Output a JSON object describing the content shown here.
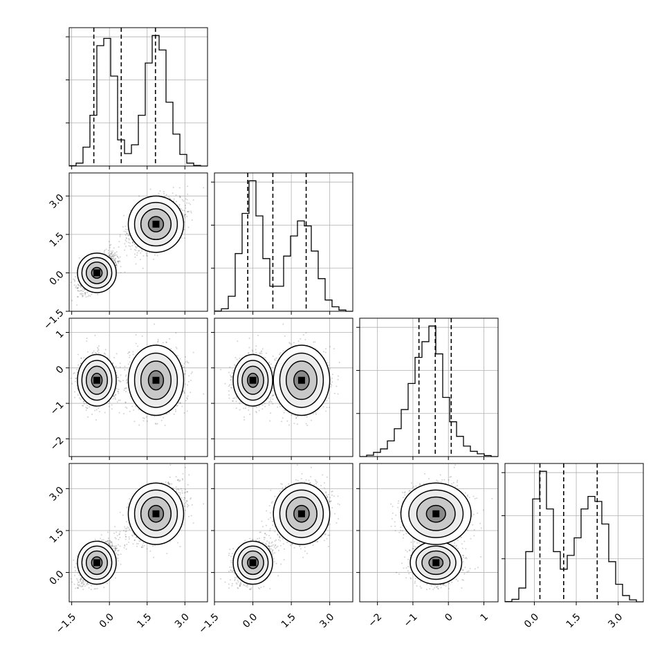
{
  "chart_data": {
    "type": "corner",
    "n_params": 4,
    "grid": true,
    "quantile_lines": "dashed",
    "contour_levels": 4,
    "params": [
      {
        "range": [
          -1.6,
          3.9
        ],
        "tick_values": [
          -1.5,
          0.0,
          1.5,
          3.0
        ],
        "tick_labels": [
          "−1.5",
          "0.0",
          "1.5",
          "3.0"
        ],
        "quantiles": [
          -0.62,
          0.47,
          1.83
        ]
      },
      {
        "range": [
          -1.5,
          3.9
        ],
        "tick_values": [
          -1.5,
          0.0,
          1.5,
          3.0
        ],
        "tick_labels": [
          "−1.5",
          "0.0",
          "1.5",
          "3.0"
        ],
        "quantiles": [
          -0.2,
          0.78,
          2.08
        ]
      },
      {
        "range": [
          -2.5,
          1.4
        ],
        "tick_values": [
          -2,
          -1,
          0,
          1
        ],
        "tick_labels": [
          "−2",
          "−1",
          "0",
          "1"
        ],
        "quantiles": [
          -0.83,
          -0.37,
          0.08
        ]
      },
      {
        "range": [
          -1.05,
          3.9
        ],
        "tick_values": [
          0.0,
          1.5,
          3.0
        ],
        "tick_labels": [
          "0.0",
          "1.5",
          "3.0"
        ],
        "quantiles": [
          0.2,
          1.05,
          2.25
        ]
      }
    ],
    "histograms": [
      {
        "bin_edges_start": -1.6,
        "bin_width": 0.275,
        "counts": [
          1,
          10,
          65,
          175,
          415,
          440,
          310,
          90,
          43,
          73,
          175,
          355,
          450,
          400,
          220,
          110,
          40,
          10,
          2,
          0
        ],
        "max_count": 450
      },
      {
        "bin_edges_start": -1.5,
        "bin_width": 0.27,
        "counts": [
          1,
          10,
          60,
          230,
          390,
          520,
          380,
          210,
          100,
          100,
          220,
          300,
          360,
          340,
          240,
          130,
          45,
          18,
          5,
          0
        ],
        "max_count": 520
      },
      {
        "bin_edges_start": -2.5,
        "bin_width": 0.195,
        "counts": [
          0,
          4,
          12,
          22,
          45,
          80,
          135,
          210,
          285,
          330,
          375,
          295,
          170,
          100,
          58,
          30,
          15,
          8,
          3,
          0
        ],
        "max_count": 375
      },
      {
        "bin_edges_start": -1.05,
        "bin_width": 0.2475,
        "counts": [
          1,
          10,
          55,
          200,
          410,
          520,
          370,
          200,
          130,
          185,
          255,
          370,
          420,
          400,
          310,
          160,
          70,
          25,
          8,
          0
        ],
        "max_count": 520
      }
    ],
    "mixture_components": [
      {
        "weight": 0.5,
        "mean": [
          -0.5,
          0.0,
          -0.35,
          0.35
        ],
        "sd": [
          0.35,
          0.35,
          0.33,
          0.35
        ],
        "corr_01": 0.6,
        "corr_03": 0.5
      },
      {
        "weight": 0.5,
        "mean": [
          1.85,
          1.9,
          -0.35,
          2.1
        ],
        "sd": [
          0.5,
          0.5,
          0.45,
          0.5
        ],
        "corr_01": 0.45,
        "corr_03": 0.4
      }
    ],
    "n_scatter_points": 2500
  }
}
